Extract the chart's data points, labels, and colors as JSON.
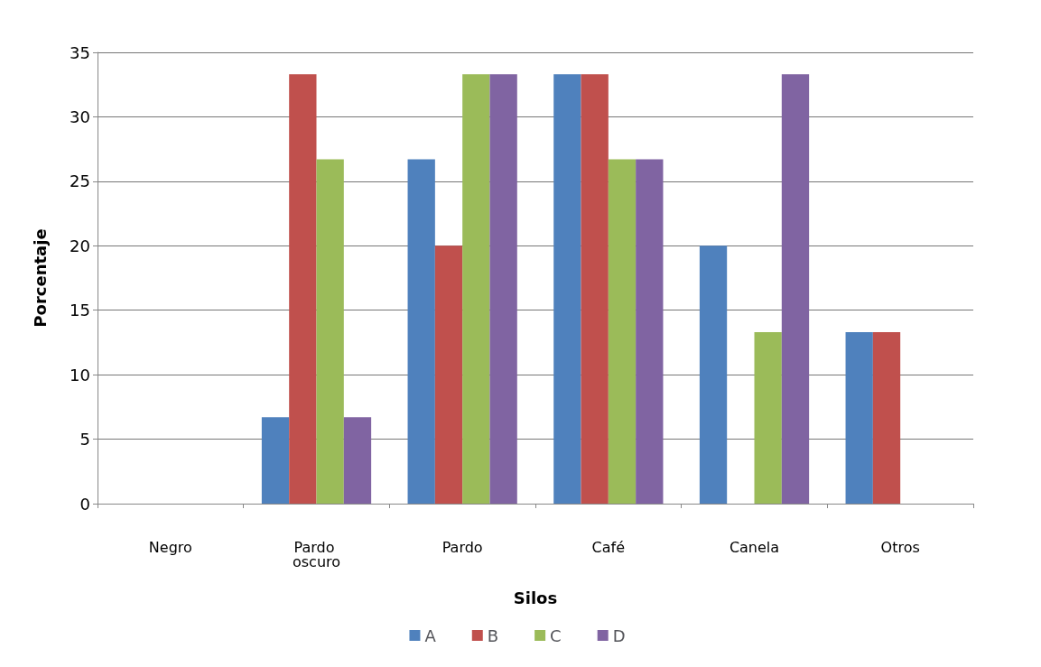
{
  "chart_data": {
    "type": "bar",
    "xlabel": "Silos",
    "ylabel": "Porcentaje",
    "categories": [
      "Negro",
      "Pardo oscuro",
      "Pardo",
      "Café",
      "Canela",
      "Otros"
    ],
    "series": [
      {
        "name": "A",
        "color": "#4f81bd",
        "values": [
          0,
          6.7,
          26.7,
          33.3,
          20,
          13.3
        ]
      },
      {
        "name": "B",
        "color": "#c0504d",
        "values": [
          0,
          33.3,
          20,
          33.3,
          0,
          13.3
        ]
      },
      {
        "name": "C",
        "color": "#9bbb59",
        "values": [
          0,
          26.7,
          33.3,
          26.7,
          13.3,
          0
        ]
      },
      {
        "name": "D",
        "color": "#8064a2",
        "values": [
          0,
          6.7,
          33.3,
          26.7,
          33.3,
          0
        ]
      }
    ],
    "ylim": [
      0,
      35
    ],
    "yticks": [
      0,
      5,
      10,
      15,
      20,
      25,
      30,
      35
    ],
    "grid": "y",
    "legend": "bottom"
  }
}
